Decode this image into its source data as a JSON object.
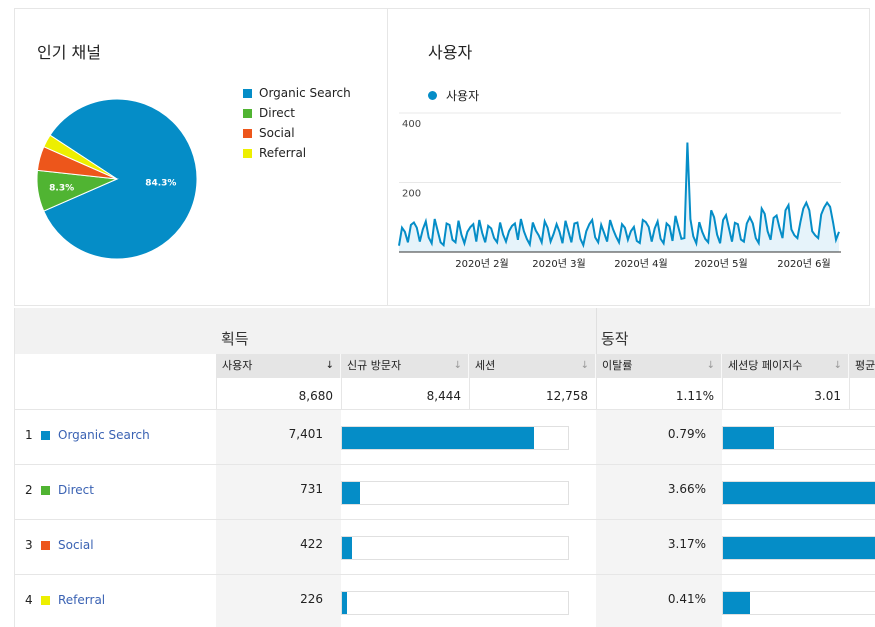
{
  "pie_card": {
    "title": "인기 채널",
    "legend": [
      {
        "label": "Organic Search",
        "color": "#058dc7"
      },
      {
        "label": "Direct",
        "color": "#50b432"
      },
      {
        "label": "Social",
        "color": "#ed561b"
      },
      {
        "label": "Referral",
        "color": "#edef00"
      }
    ]
  },
  "line_card": {
    "title": "사용자",
    "legend_label": "사용자"
  },
  "table": {
    "group_acquisition": "획득",
    "group_behavior": "동작",
    "columns": [
      "사용자",
      "신규 방문자",
      "세션",
      "이탈률",
      "세션당 페이지수",
      "평균"
    ],
    "sort_active_icon": "arrow-down-icon",
    "totals": {
      "users": "8,680",
      "new_visitors": "8,444",
      "sessions": "12,758",
      "bounce_rate": "1.11%",
      "pages_per_session": "3.01"
    },
    "rows": [
      {
        "index": "1",
        "name": "Organic Search",
        "color": "#058dc7",
        "users": "7,401",
        "bounce_rate": "0.79%",
        "new_bar": 0.85,
        "pages_bar": 0.32
      },
      {
        "index": "2",
        "name": "Direct",
        "color": "#50b432",
        "users": "731",
        "bounce_rate": "3.66%",
        "new_bar": 0.08,
        "pages_bar": 1.0
      },
      {
        "index": "3",
        "name": "Social",
        "color": "#ed561b",
        "users": "422",
        "bounce_rate": "3.17%",
        "new_bar": 0.045,
        "pages_bar": 1.0
      },
      {
        "index": "4",
        "name": "Referral",
        "color": "#edef00",
        "users": "226",
        "bounce_rate": "0.41%",
        "new_bar": 0.02,
        "pages_bar": 0.17
      }
    ]
  },
  "chart_data": [
    {
      "type": "pie",
      "categories": [
        "Organic Search",
        "Direct",
        "Social",
        "Referral"
      ],
      "values": [
        84.3,
        8.3,
        4.9,
        2.6
      ],
      "data_labels": [
        "84.3%",
        "8.3%",
        "",
        ""
      ],
      "colors": [
        "#058dc7",
        "#50b432",
        "#ed561b",
        "#edef00"
      ]
    },
    {
      "type": "area",
      "series": [
        {
          "name": "사용자",
          "values": [
            18,
            70,
            58,
            28,
            78,
            85,
            70,
            30,
            65,
            88,
            42,
            25,
            95,
            62,
            28,
            20,
            82,
            78,
            35,
            28,
            90,
            50,
            25,
            58,
            72,
            80,
            30,
            92,
            55,
            28,
            75,
            68,
            40,
            28,
            85,
            50,
            30,
            60,
            75,
            82,
            35,
            95,
            60,
            38,
            22,
            85,
            62,
            48,
            28,
            88,
            70,
            30,
            52,
            80,
            58,
            25,
            90,
            58,
            28,
            82,
            85,
            38,
            20,
            60,
            80,
            92,
            42,
            28,
            78,
            55,
            30,
            92,
            65,
            45,
            28,
            80,
            70,
            35,
            60,
            72,
            32,
            26,
            92,
            86,
            72,
            30,
            68,
            88,
            38,
            25,
            82,
            74,
            32,
            104,
            70,
            38,
            40,
            315,
            95,
            45,
            25,
            86,
            58,
            38,
            28,
            120,
            100,
            50,
            25,
            92,
            106,
            68,
            30,
            84,
            80,
            36,
            30,
            82,
            100,
            82,
            40,
            26,
            125,
            110,
            60,
            35,
            98,
            105,
            70,
            40,
            120,
            135,
            65,
            48,
            40,
            86,
            125,
            142,
            120,
            60,
            48,
            40,
            108,
            128,
            142,
            130,
            85,
            35,
            58
          ]
        }
      ],
      "x_tick_labels": [
        "2020년 2월",
        "2020년 3월",
        "2020년 4월",
        "2020년 5월",
        "2020년 6월"
      ],
      "y_tick_labels": [
        "200",
        "400"
      ],
      "ylim": [
        0,
        400
      ],
      "grid": true,
      "legend_position": "top-left"
    }
  ]
}
